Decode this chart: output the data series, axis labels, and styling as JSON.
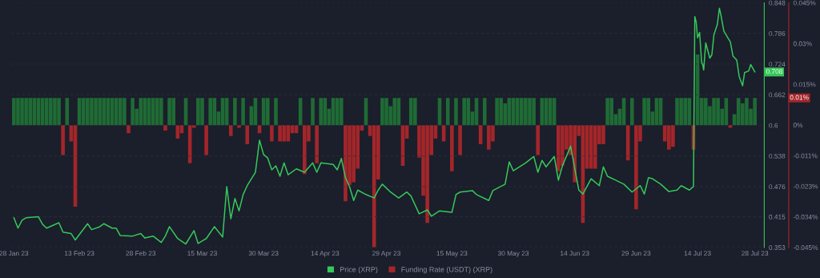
{
  "chart_data": {
    "type": "line",
    "xlim": [
      "2023-01-27T10:00",
      "2023-07-30T07:00"
    ],
    "xticks": [
      {
        "value": "2023-01-28",
        "label": "28 Jan 23"
      },
      {
        "value": "2023-02-13",
        "label": "13 Feb 23"
      },
      {
        "value": "2023-02-28",
        "label": "28 Feb 23"
      },
      {
        "value": "2023-03-15",
        "label": "15 Mar 23"
      },
      {
        "value": "2023-03-30",
        "label": "30 Mar 23"
      },
      {
        "value": "2023-04-14",
        "label": "14 Apr 23"
      },
      {
        "value": "2023-04-29",
        "label": "29 Apr 23"
      },
      {
        "value": "2023-05-15",
        "label": "15 May 23"
      },
      {
        "value": "2023-05-30",
        "label": "30 May 23"
      },
      {
        "value": "2023-06-14",
        "label": "14 Jun 23"
      },
      {
        "value": "2023-06-29",
        "label": "29 Jun 23"
      },
      {
        "value": "2023-07-14",
        "label": "14 Jul 23"
      },
      {
        "value": "2023-07-28",
        "label": "28 Jul 23"
      }
    ],
    "ylim": [
      0.353,
      0.848
    ],
    "yticks": [
      0.353,
      0.415,
      0.476,
      0.538,
      0.6,
      0.662,
      0.724,
      0.786,
      0.848
    ],
    "y2lim": [
      -0.045,
      0.045
    ],
    "y2ticks": [
      {
        "value": -0.045,
        "label": "-0.045%"
      },
      {
        "value": -0.03375,
        "label": "-0.034%"
      },
      {
        "value": -0.0225,
        "label": "-0.023%"
      },
      {
        "value": -0.01125,
        "label": "-0.011%"
      },
      {
        "value": 0,
        "label": "0%"
      },
      {
        "value": 0.015,
        "label": "0.015%"
      },
      {
        "value": 0.03,
        "label": "0.03%"
      },
      {
        "value": 0.045,
        "label": "0.045%"
      }
    ],
    "grid": "y",
    "legend": "bottom",
    "annotations": [
      {
        "text": "0.708",
        "x": "2023-07-28",
        "y": 0.708
      },
      "0.01%"
    ],
    "series": [
      {
        "name": "Price (XRP)",
        "axis": "y",
        "color": "#35c759",
        "x": [
          "2023-01-28",
          "2023-01-29",
          "2023-01-30",
          "2023-01-31",
          "2023-02-03",
          "2023-02-04",
          "2023-02-05",
          "2023-02-08",
          "2023-02-09",
          "2023-02-11",
          "2023-02-12",
          "2023-02-13",
          "2023-02-15",
          "2023-02-16",
          "2023-02-18",
          "2023-02-19",
          "2023-02-21",
          "2023-02-22",
          "2023-02-23",
          "2023-02-26",
          "2023-02-28",
          "2023-03-01",
          "2023-03-03",
          "2023-03-05",
          "2023-03-06",
          "2023-03-07",
          "2023-03-09",
          "2023-03-11",
          "2023-03-13",
          "2023-03-14",
          "2023-03-16",
          "2023-03-18",
          "2023-03-20",
          "2023-03-21",
          "2023-03-22",
          "2023-03-23",
          "2023-03-24",
          "2023-03-25",
          "2023-03-26",
          "2023-03-28",
          "2023-03-29",
          "2023-03-30",
          "2023-03-31",
          "2023-04-01",
          "2023-04-02",
          "2023-04-03",
          "2023-04-04",
          "2023-04-05",
          "2023-04-07",
          "2023-04-09",
          "2023-04-11",
          "2023-04-12",
          "2023-04-13",
          "2023-04-16",
          "2023-04-17",
          "2023-04-18",
          "2023-04-19",
          "2023-04-20",
          "2023-04-21",
          "2023-04-22",
          "2023-04-24",
          "2023-04-26",
          "2023-04-27",
          "2023-04-28",
          "2023-04-30",
          "2023-05-02",
          "2023-05-04",
          "2023-05-05",
          "2023-05-07",
          "2023-05-09",
          "2023-05-10",
          "2023-05-12",
          "2023-05-15",
          "2023-05-16",
          "2023-05-17",
          "2023-05-20",
          "2023-05-21",
          "2023-05-24",
          "2023-05-25",
          "2023-05-28",
          "2023-05-29",
          "2023-05-30",
          "2023-06-02",
          "2023-06-04",
          "2023-06-05",
          "2023-06-06",
          "2023-06-07",
          "2023-06-09",
          "2023-06-10",
          "2023-06-11",
          "2023-06-13",
          "2023-06-14",
          "2023-06-15",
          "2023-06-16",
          "2023-06-18",
          "2023-06-20",
          "2023-06-21",
          "2023-06-22",
          "2023-06-24",
          "2023-06-26",
          "2023-06-28",
          "2023-06-30",
          "2023-07-01",
          "2023-07-02",
          "2023-07-03",
          "2023-07-05",
          "2023-07-07",
          "2023-07-09",
          "2023-07-10",
          "2023-07-12",
          "2023-07-13T00:00",
          "2023-07-13T08:00",
          "2023-07-13T16:00",
          "2023-07-14T00:00",
          "2023-07-14T12:00",
          "2023-07-15T00:00",
          "2023-07-15T06:00",
          "2023-07-15T12:00",
          "2023-07-16T00:00",
          "2023-07-17T00:00",
          "2023-07-17T12:00",
          "2023-07-18T00:00",
          "2023-07-18T20:00",
          "2023-07-19T08:00",
          "2023-07-19T16:00",
          "2023-07-20T10:00",
          "2023-07-21T10:00",
          "2023-07-22T00:00",
          "2023-07-22T16:00",
          "2023-07-23T14:00",
          "2023-07-24T04:00",
          "2023-07-25T00:00",
          "2023-07-25T12:00",
          "2023-07-26T12:00",
          "2023-07-27T00:00",
          "2023-07-28T00:00"
        ],
        "values": [
          0.413,
          0.392,
          0.408,
          0.413,
          0.415,
          0.4,
          0.392,
          0.403,
          0.384,
          0.381,
          0.368,
          0.379,
          0.401,
          0.389,
          0.395,
          0.401,
          0.392,
          0.392,
          0.377,
          0.376,
          0.381,
          0.372,
          0.376,
          0.363,
          0.376,
          0.395,
          0.371,
          0.36,
          0.387,
          0.361,
          0.371,
          0.395,
          0.374,
          0.476,
          0.411,
          0.452,
          0.427,
          0.46,
          0.478,
          0.505,
          0.57,
          0.541,
          0.534,
          0.51,
          0.518,
          0.497,
          0.524,
          0.5,
          0.512,
          0.505,
          0.524,
          0.505,
          0.524,
          0.521,
          0.51,
          0.533,
          0.494,
          0.476,
          0.448,
          0.469,
          0.46,
          0.453,
          0.469,
          0.481,
          0.465,
          0.453,
          0.465,
          0.457,
          0.421,
          0.429,
          0.416,
          0.427,
          0.424,
          0.46,
          0.465,
          0.468,
          0.46,
          0.448,
          0.468,
          0.481,
          0.526,
          0.508,
          0.524,
          0.537,
          0.505,
          0.529,
          0.516,
          0.537,
          0.489,
          0.518,
          0.558,
          0.513,
          0.469,
          0.461,
          0.492,
          0.478,
          0.516,
          0.497,
          0.489,
          0.481,
          0.465,
          0.478,
          0.461,
          0.494,
          0.492,
          0.481,
          0.466,
          0.469,
          0.478,
          0.469,
          0.476,
          0.82,
          0.809,
          0.777,
          0.788,
          0.727,
          0.723,
          0.712,
          0.767,
          0.736,
          0.743,
          0.783,
          0.804,
          0.837,
          0.825,
          0.791,
          0.777,
          0.769,
          0.74,
          0.732,
          0.699,
          0.68,
          0.707,
          0.71,
          0.723,
          0.708
        ]
      },
      {
        "name": "Funding Rate (USDT) (XRP)",
        "type": "bar",
        "axis": "y2",
        "color": "#a3262a",
        "x": [
          "2023-01-28",
          "2023-01-29",
          "2023-01-30",
          "2023-01-31",
          "2023-02-01",
          "2023-02-02",
          "2023-02-03",
          "2023-02-04",
          "2023-02-05",
          "2023-02-06",
          "2023-02-07",
          "2023-02-08",
          "2023-02-09",
          "2023-02-10",
          "2023-02-11",
          "2023-02-12",
          "2023-02-13",
          "2023-02-14",
          "2023-02-15",
          "2023-02-16",
          "2023-02-17",
          "2023-02-18",
          "2023-02-19",
          "2023-02-20",
          "2023-02-21",
          "2023-02-22",
          "2023-02-23",
          "2023-02-24",
          "2023-02-25",
          "2023-02-26",
          "2023-02-27",
          "2023-02-28",
          "2023-03-01",
          "2023-03-02",
          "2023-03-03",
          "2023-03-04",
          "2023-03-05",
          "2023-03-06",
          "2023-03-07",
          "2023-03-08",
          "2023-03-09",
          "2023-03-10",
          "2023-03-11",
          "2023-03-12",
          "2023-03-13",
          "2023-03-14",
          "2023-03-15",
          "2023-03-16",
          "2023-03-17",
          "2023-03-18",
          "2023-03-19",
          "2023-03-20",
          "2023-03-21",
          "2023-03-22",
          "2023-03-23",
          "2023-03-24",
          "2023-03-25",
          "2023-03-26",
          "2023-03-27",
          "2023-03-28",
          "2023-03-29",
          "2023-03-30",
          "2023-03-31",
          "2023-04-01",
          "2023-04-02",
          "2023-04-03",
          "2023-04-04",
          "2023-04-05",
          "2023-04-06",
          "2023-04-07",
          "2023-04-08",
          "2023-04-09",
          "2023-04-10",
          "2023-04-11",
          "2023-04-12",
          "2023-04-13",
          "2023-04-14",
          "2023-04-15",
          "2023-04-16",
          "2023-04-17",
          "2023-04-18",
          "2023-04-19",
          "2023-04-20",
          "2023-04-21",
          "2023-04-22",
          "2023-04-23",
          "2023-04-24",
          "2023-04-25",
          "2023-04-26",
          "2023-04-27",
          "2023-04-28",
          "2023-04-29",
          "2023-04-30",
          "2023-05-01",
          "2023-05-02",
          "2023-05-03",
          "2023-05-04",
          "2023-05-05",
          "2023-05-06",
          "2023-05-07",
          "2023-05-08",
          "2023-05-09",
          "2023-05-10",
          "2023-05-11",
          "2023-05-12",
          "2023-05-13",
          "2023-05-14",
          "2023-05-15",
          "2023-05-16",
          "2023-05-17",
          "2023-05-18",
          "2023-05-19",
          "2023-05-20",
          "2023-05-21",
          "2023-05-22",
          "2023-05-23",
          "2023-05-24",
          "2023-05-25",
          "2023-05-26",
          "2023-05-27",
          "2023-05-28",
          "2023-05-29",
          "2023-05-30",
          "2023-05-31",
          "2023-06-01",
          "2023-06-02",
          "2023-06-03",
          "2023-06-04",
          "2023-06-05",
          "2023-06-06",
          "2023-06-07",
          "2023-06-08",
          "2023-06-09",
          "2023-06-10",
          "2023-06-11",
          "2023-06-12",
          "2023-06-13",
          "2023-06-14",
          "2023-06-15",
          "2023-06-16",
          "2023-06-17",
          "2023-06-18",
          "2023-06-19",
          "2023-06-20",
          "2023-06-21",
          "2023-06-22",
          "2023-06-23",
          "2023-06-24",
          "2023-06-25",
          "2023-06-26",
          "2023-06-27",
          "2023-06-28",
          "2023-06-29",
          "2023-06-30",
          "2023-07-01",
          "2023-07-02",
          "2023-07-03",
          "2023-07-04",
          "2023-07-05",
          "2023-07-06",
          "2023-07-07",
          "2023-07-08",
          "2023-07-09",
          "2023-07-10",
          "2023-07-11",
          "2023-07-12",
          "2023-07-13",
          "2023-07-14",
          "2023-07-15",
          "2023-07-16",
          "2023-07-17",
          "2023-07-18",
          "2023-07-19",
          "2023-07-20",
          "2023-07-21",
          "2023-07-22",
          "2023-07-23",
          "2023-07-24",
          "2023-07-25",
          "2023-07-26",
          "2023-07-27",
          "2023-07-28"
        ],
        "values": [
          0.01,
          0.01,
          0.01,
          0.01,
          0.01,
          0.01,
          0.01,
          0.01,
          0.01,
          0.01,
          0.01,
          0.01,
          -0.011,
          0.01,
          -0.006,
          -0.03,
          0.01,
          0.01,
          0.01,
          0.01,
          0.01,
          0.01,
          0.01,
          0.01,
          0.01,
          0.01,
          0.01,
          0.01,
          -0.003,
          0.01,
          0.006,
          0.01,
          0.01,
          0.01,
          0.01,
          0.01,
          0.01,
          -0.002,
          0.01,
          0.01,
          -0.005,
          -0.003,
          0.01,
          -0.014,
          -0.001,
          0.01,
          0.01,
          -0.011,
          0.01,
          0.01,
          0.005,
          0.01,
          0.01,
          -0.004,
          0.01,
          -0.001,
          0.01,
          -0.007,
          0.007,
          0.01,
          -0.003,
          0.01,
          0.01,
          -0.006,
          0.01,
          -0.006,
          -0.006,
          -0.006,
          -0.003,
          -0.003,
          0.01,
          -0.018,
          -0.006,
          0.01,
          -0.014,
          0.01,
          0.01,
          0.006,
          0.01,
          0.01,
          0.01,
          -0.028,
          -0.022,
          -0.021,
          -0.016,
          -0.002,
          0.01,
          -0.004,
          -0.045,
          -0.02,
          0.01,
          0.01,
          0.007,
          0.01,
          0.01,
          -0.015,
          -0.005,
          0.01,
          0.01,
          -0.012,
          -0.026,
          -0.036,
          -0.011,
          -0.005,
          0.01,
          -0.006,
          0.01,
          -0.017,
          0.01,
          -0.011,
          0.01,
          0.01,
          0.005,
          0.01,
          -0.007,
          0.01,
          -0.009,
          -0.006,
          0.01,
          0.01,
          0.008,
          0.01,
          0.01,
          0.01,
          0.01,
          0.01,
          0.01,
          0.01,
          -0.011,
          0.01,
          0.01,
          0.01,
          0.01,
          -0.017,
          -0.015,
          -0.009,
          -0.011,
          -0.021,
          -0.004,
          -0.036,
          -0.016,
          -0.016,
          -0.016,
          -0.007,
          -0.007,
          0.01,
          0.01,
          0.004,
          0.006,
          0.01,
          -0.013,
          0.01,
          -0.031,
          -0.006,
          0.01,
          0.01,
          0.005,
          0.01,
          0.01,
          -0.006,
          -0.009,
          -0.008,
          0.01,
          0.01,
          0.01,
          0.01,
          -0.009,
          0.026,
          0.01,
          0.01,
          0.007,
          0.01,
          0.01,
          0.006,
          0.01,
          -0.001,
          0.004,
          0.01,
          0.008,
          0.01,
          0.006,
          0.01
        ],
        "colors": [
          "#1f6b35",
          "#1f6b35",
          "#1f6b35",
          "#1f6b35",
          "#1f6b35",
          "#1f6b35",
          "#1f6b35",
          "#1f6b35",
          "#1f6b35",
          "#1f6b35",
          "#1f6b35",
          "#1f6b35",
          "#a3262a",
          "#1f6b35",
          "#a3262a",
          "#a3262a",
          "#1f6b35",
          "#1f6b35",
          "#1f6b35",
          "#1f6b35",
          "#1f6b35",
          "#1f6b35",
          "#1f6b35",
          "#1f6b35",
          "#1f6b35",
          "#1f6b35",
          "#1f6b35",
          "#1f6b35",
          "#a3262a",
          "#1f6b35",
          "#1f6b35",
          "#1f6b35",
          "#1f6b35",
          "#1f6b35",
          "#1f6b35",
          "#1f6b35",
          "#1f6b35",
          "#a3262a",
          "#1f6b35",
          "#1f6b35",
          "#a3262a",
          "#a3262a",
          "#1f6b35",
          "#a3262a",
          "#a3262a",
          "#1f6b35",
          "#1f6b35",
          "#a3262a",
          "#1f6b35",
          "#1f6b35",
          "#1f6b35",
          "#1f6b35",
          "#1f6b35",
          "#a3262a",
          "#1f6b35",
          "#a3262a",
          "#1f6b35",
          "#a3262a",
          "#1f6b35",
          "#1f6b35",
          "#a3262a",
          "#1f6b35",
          "#1f6b35",
          "#a3262a",
          "#1f6b35",
          "#a3262a",
          "#a3262a",
          "#a3262a",
          "#a3262a",
          "#a3262a",
          "#1f6b35",
          "#a3262a",
          "#a3262a",
          "#1f6b35",
          "#a3262a",
          "#1f6b35",
          "#1f6b35",
          "#1f6b35",
          "#1f6b35",
          "#1f6b35",
          "#1f6b35",
          "#a3262a",
          "#a3262a",
          "#a3262a",
          "#a3262a",
          "#a3262a",
          "#1f6b35",
          "#a3262a",
          "#a3262a",
          "#a3262a",
          "#1f6b35",
          "#1f6b35",
          "#1f6b35",
          "#1f6b35",
          "#1f6b35",
          "#a3262a",
          "#a3262a",
          "#1f6b35",
          "#1f6b35",
          "#a3262a",
          "#a3262a",
          "#a3262a",
          "#a3262a",
          "#a3262a",
          "#1f6b35",
          "#a3262a",
          "#1f6b35",
          "#a3262a",
          "#1f6b35",
          "#a3262a",
          "#1f6b35",
          "#1f6b35",
          "#1f6b35",
          "#1f6b35",
          "#a3262a",
          "#1f6b35",
          "#a3262a",
          "#a3262a",
          "#1f6b35",
          "#1f6b35",
          "#1f6b35",
          "#1f6b35",
          "#1f6b35",
          "#1f6b35",
          "#1f6b35",
          "#1f6b35",
          "#1f6b35",
          "#1f6b35",
          "#a3262a",
          "#1f6b35",
          "#1f6b35",
          "#1f6b35",
          "#1f6b35",
          "#a3262a",
          "#a3262a",
          "#a3262a",
          "#a3262a",
          "#a3262a",
          "#a3262a",
          "#a3262a",
          "#a3262a",
          "#a3262a",
          "#a3262a",
          "#a3262a",
          "#a3262a",
          "#1f6b35",
          "#1f6b35",
          "#1f6b35",
          "#1f6b35",
          "#1f6b35",
          "#a3262a",
          "#1f6b35",
          "#a3262a",
          "#a3262a",
          "#1f6b35",
          "#1f6b35",
          "#1f6b35",
          "#1f6b35",
          "#1f6b35",
          "#a3262a",
          "#a3262a",
          "#a3262a",
          "#1f6b35",
          "#1f6b35",
          "#1f6b35",
          "#1f6b35",
          "#a3262a",
          "#1f6b35",
          "#1f6b35",
          "#1f6b35",
          "#1f6b35",
          "#1f6b35",
          "#1f6b35",
          "#1f6b35",
          "#1f6b35",
          "#a3262a",
          "#1f6b35",
          "#1f6b35",
          "#1f6b35",
          "#1f6b35",
          "#1f6b35",
          "#1f6b35"
        ]
      }
    ]
  }
}
